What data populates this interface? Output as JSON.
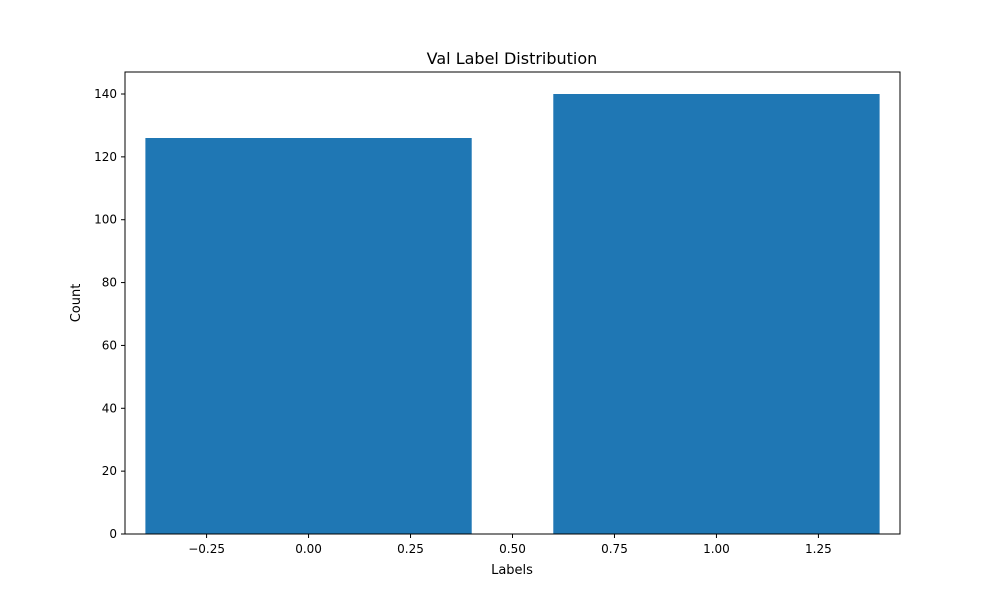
{
  "chart_data": {
    "type": "bar",
    "title": "Val Label Distribution",
    "xlabel": "Labels",
    "ylabel": "Count",
    "x": [
      0,
      1
    ],
    "values": [
      126,
      140
    ],
    "bar_width": 0.8,
    "xlim": [
      -0.45,
      1.45
    ],
    "ylim": [
      0,
      147
    ],
    "xticks": [
      -0.25,
      0.0,
      0.25,
      0.5,
      0.75,
      1.0,
      1.25
    ],
    "xtick_labels": [
      "−0.25",
      "0.00",
      "0.25",
      "0.50",
      "0.75",
      "1.00",
      "1.25"
    ],
    "yticks": [
      0,
      20,
      40,
      60,
      80,
      100,
      120,
      140
    ],
    "ytick_labels": [
      "0",
      "20",
      "40",
      "60",
      "80",
      "100",
      "120",
      "140"
    ],
    "bar_color": "#1f77b4",
    "grid": false,
    "legend": false
  }
}
